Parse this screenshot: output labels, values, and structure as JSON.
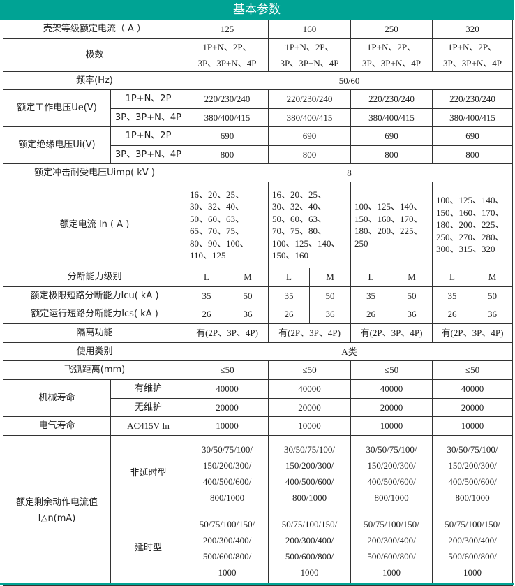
{
  "title": "基本参数",
  "accent_color": "#00a394",
  "frame": {
    "label": "壳架等级额定电流（ A ）",
    "values": [
      "125",
      "160",
      "250",
      "320"
    ]
  },
  "poles": {
    "label": "极数",
    "values": [
      "1P+N、2P、\n3P、3P+N、4P",
      "1P+N、2P、\n3P、3P+N、4P",
      "1P+N、2P、\n3P、3P+N、4P",
      "1P+N、2P、\n3P、3P+N、4P"
    ]
  },
  "freq": {
    "label": "频率(Hz)",
    "value": "50/60"
  },
  "ue": {
    "label": "额定工作电压Ue(V)",
    "rows": [
      {
        "sub": "1P+N、2P",
        "values": [
          "220/230/240",
          "220/230/240",
          "220/230/240",
          "220/230/240"
        ]
      },
      {
        "sub": "3P、3P+N、4P",
        "values": [
          "380/400/415",
          "380/400/415",
          "380/400/415",
          "380/400/415"
        ]
      }
    ]
  },
  "ui": {
    "label": "额定绝缘电压Ui(V)",
    "rows": [
      {
        "sub": "1P+N、2P",
        "values": [
          "690",
          "690",
          "690",
          "690"
        ]
      },
      {
        "sub": "3P、3P+N、4P",
        "values": [
          "800",
          "800",
          "800",
          "800"
        ]
      }
    ]
  },
  "uimp": {
    "label": "额定冲击耐受电压Uimp( kV )",
    "value": "8"
  },
  "rated_current": {
    "label": "额定电流 In ( A )",
    "values": [
      "16、20、25、\n30、32、40、\n50、60、63、\n65、70、75、\n80、90、100、\n110、125",
      "16、20、25、\n30、32、40、\n50、60、63、\n70、75、80、\n100、125、140、\n150、160",
      "100、125、140、\n150、160、170、\n180、200、225、\n250",
      "100、125、140、\n150、160、170、\n180、200、225、\n250、270、280、\n300、315、320"
    ]
  },
  "breaking_class": {
    "label": "分断能力级别",
    "values": [
      "L",
      "M",
      "L",
      "M",
      "L",
      "M",
      "L",
      "M"
    ]
  },
  "icu": {
    "label": "额定极限短路分断能力Icu( kA )",
    "values": [
      "35",
      "50",
      "35",
      "50",
      "35",
      "50",
      "35",
      "50"
    ]
  },
  "ics": {
    "label": "额定运行短路分断能力Ics( kA )",
    "values": [
      "26",
      "36",
      "26",
      "36",
      "26",
      "36",
      "26",
      "36"
    ]
  },
  "isolation": {
    "label": "隔离功能",
    "values": [
      "有(2P、3P、4P)",
      "有(2P、3P、4P)",
      "有(2P、3P、4P)",
      "有(2P、3P、4P)"
    ]
  },
  "category": {
    "label": "使用类别",
    "value": "A类"
  },
  "arc": {
    "label": "飞弧距离(mm)",
    "values": [
      "≤50",
      "≤50",
      "≤50",
      "≤50"
    ]
  },
  "mech_life": {
    "label": "机械寿命",
    "rows": [
      {
        "sub": "有维护",
        "values": [
          "40000",
          "40000",
          "40000",
          "40000"
        ]
      },
      {
        "sub": "无维护",
        "values": [
          "20000",
          "20000",
          "20000",
          "20000"
        ]
      }
    ]
  },
  "elec_life": {
    "label": "电气寿命",
    "sub": "AC415V In",
    "values": [
      "10000",
      "10000",
      "10000",
      "10000"
    ]
  },
  "residual": {
    "label": "额定剩余动作电流值\nI△n(mA)",
    "rows": [
      {
        "sub": "非延时型",
        "values": [
          "30/50/75/100/\n150/200/300/\n400/500/600/\n800/1000",
          "30/50/75/100/\n150/200/300/\n400/500/600/\n800/1000",
          "30/50/75/100/\n150/200/300/\n400/500/600/\n800/1000",
          "30/50/75/100/\n150/200/300/\n400/500/600/\n800/1000"
        ]
      },
      {
        "sub": "延时型",
        "values": [
          "50/75/100/150/\n200/300/400/\n500/600/800/\n1000",
          "50/75/100/150/\n200/300/400/\n500/600/800/\n1000",
          "50/75/100/150/\n200/300/400/\n500/600/800/\n1000",
          "50/75/100/150/\n200/300/400/\n500/600/800/\n1000"
        ]
      }
    ]
  }
}
